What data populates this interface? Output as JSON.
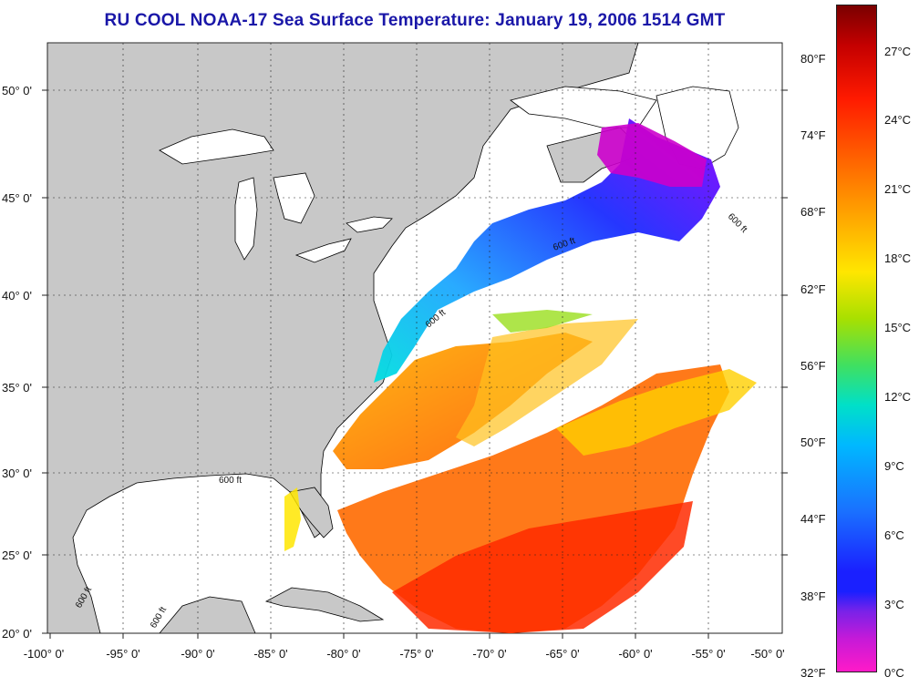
{
  "title": "RU COOL  NOAA-17  Sea Surface Temperature:  January 19, 2006 1514 GMT",
  "axes": {
    "lon_labels": [
      "-100° 0'",
      "-95° 0'",
      "-90° 0'",
      "-85° 0'",
      "-80° 0'",
      "-75° 0'",
      "-70° 0'",
      "-65° 0'",
      "-60° 0'",
      "-55° 0'",
      "-50° 0'"
    ],
    "lat_labels": [
      "50° 0'",
      "45° 0'",
      "40° 0'",
      "35° 0'",
      "30° 0'",
      "25° 0'",
      "20° 0'"
    ]
  },
  "colorbar": {
    "fahrenheit": [
      "80°F",
      "74°F",
      "68°F",
      "62°F",
      "56°F",
      "50°F",
      "44°F",
      "38°F",
      "32°F"
    ],
    "celsius": [
      "27°C",
      "24°C",
      "21°C",
      "18°C",
      "15°C",
      "12°C",
      "9°C",
      "6°C",
      "3°C",
      "0°C"
    ]
  },
  "annotations": {
    "isobath_labels": [
      "600 ft",
      "600 ft",
      "600 ft",
      "600 ft",
      "600 ft",
      "600 ft"
    ]
  },
  "colors": {
    "land": "#c8c8c8",
    "title": "#1a17a8",
    "ocean_no_data": "#ffffff"
  }
}
